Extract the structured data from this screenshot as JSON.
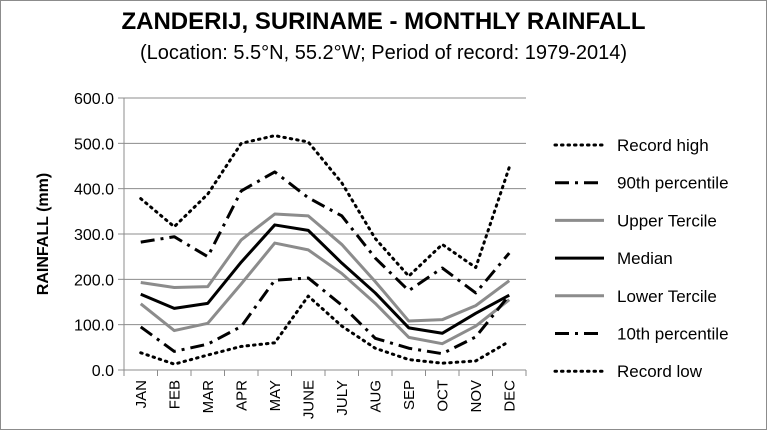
{
  "chart_data": {
    "type": "line",
    "title": "ZANDERIJ, SURINAME - MONTHLY RAINFALL",
    "subtitle": "(Location: 5.5°N, 55.2°W; Period of record: 1979-2014)",
    "xlabel": "",
    "ylabel": "RAINFALL (mm)",
    "ylim": [
      0,
      600
    ],
    "yticks": [
      "0.0",
      "100.0",
      "200.0",
      "300.0",
      "400.0",
      "500.0",
      "600.0"
    ],
    "grid": true,
    "legend_position": "right",
    "categories": [
      "JAN",
      "FEB",
      "MAR",
      "APR",
      "MAY",
      "JUNE",
      "JULY",
      "AUG",
      "SEP",
      "OCT",
      "NOV",
      "DEC"
    ],
    "series": [
      {
        "name": "Record high",
        "style": "dotted-black",
        "values": [
          378,
          316,
          388,
          500,
          517,
          503,
          413,
          290,
          207,
          277,
          226,
          447
        ]
      },
      {
        "name": "90th percentile",
        "style": "dashdot-black",
        "values": [
          282,
          294,
          250,
          395,
          437,
          380,
          340,
          247,
          175,
          225,
          170,
          258
        ]
      },
      {
        "name": "Upper Tercile",
        "style": "solid-gray",
        "values": [
          193,
          182,
          184,
          287,
          344,
          340,
          277,
          195,
          108,
          111,
          142,
          197
        ]
      },
      {
        "name": "Median",
        "style": "solid-black",
        "values": [
          167,
          136,
          147,
          238,
          320,
          308,
          236,
          170,
          93,
          81,
          125,
          165
        ]
      },
      {
        "name": "Lower Tercile",
        "style": "solid-gray",
        "values": [
          146,
          87,
          103,
          190,
          280,
          265,
          213,
          147,
          72,
          58,
          97,
          155
        ]
      },
      {
        "name": "10th percentile",
        "style": "dashdot-black",
        "values": [
          95,
          41,
          57,
          96,
          198,
          203,
          143,
          70,
          48,
          36,
          73,
          165
        ]
      },
      {
        "name": "Record low",
        "style": "dotted-black",
        "values": [
          38,
          13,
          33,
          52,
          60,
          163,
          97,
          48,
          23,
          15,
          20,
          63
        ]
      }
    ],
    "colors": {
      "black": "#000000",
      "gray": "#8c8c8c",
      "grid": "#8c8c8c"
    }
  }
}
